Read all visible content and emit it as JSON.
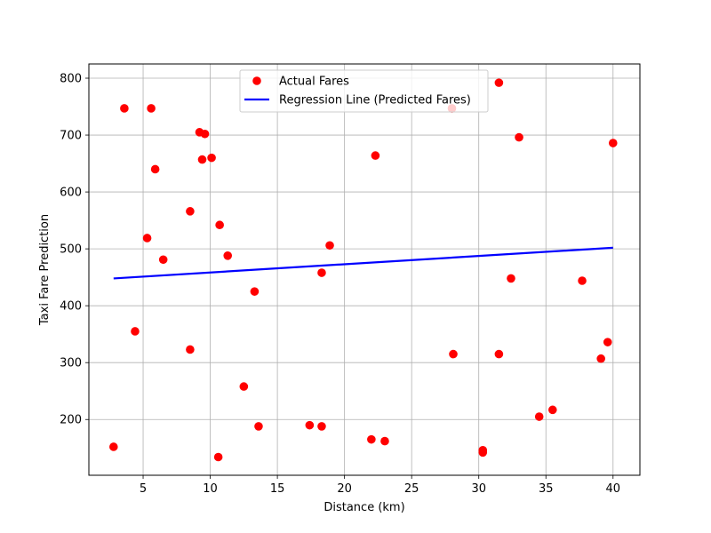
{
  "chart_data": {
    "type": "scatter",
    "xlabel": "Distance (km)",
    "ylabel": "Taxi Fare Prediction",
    "xlim": [
      0.96,
      42.0
    ],
    "ylim": [
      102,
      825
    ],
    "xticks": [
      5,
      10,
      15,
      20,
      25,
      30,
      35,
      40
    ],
    "yticks": [
      200,
      300,
      400,
      500,
      600,
      700,
      800
    ],
    "grid": true,
    "legend_position": "upper center",
    "series": [
      {
        "name": "Actual Fares",
        "kind": "scatter",
        "color": "#ff0000",
        "points": [
          [
            2.8,
            152
          ],
          [
            3.6,
            747
          ],
          [
            4.4,
            355
          ],
          [
            5.3,
            519
          ],
          [
            5.6,
            747
          ],
          [
            5.9,
            640
          ],
          [
            6.5,
            481
          ],
          [
            8.5,
            566
          ],
          [
            8.5,
            323
          ],
          [
            9.2,
            705
          ],
          [
            9.4,
            657
          ],
          [
            9.6,
            702
          ],
          [
            10.1,
            660
          ],
          [
            10.6,
            134
          ],
          [
            10.7,
            542
          ],
          [
            11.3,
            488
          ],
          [
            12.5,
            258
          ],
          [
            13.3,
            425
          ],
          [
            13.6,
            188
          ],
          [
            17.4,
            190
          ],
          [
            18.3,
            458
          ],
          [
            18.3,
            188
          ],
          [
            18.9,
            506
          ],
          [
            22.0,
            165
          ],
          [
            22.3,
            664
          ],
          [
            23.0,
            162
          ],
          [
            28.0,
            747
          ],
          [
            28.1,
            315
          ],
          [
            30.3,
            146
          ],
          [
            30.3,
            142
          ],
          [
            31.5,
            792
          ],
          [
            31.5,
            315
          ],
          [
            32.4,
            448
          ],
          [
            33.0,
            696
          ],
          [
            34.5,
            205
          ],
          [
            35.5,
            217
          ],
          [
            37.7,
            444
          ],
          [
            39.1,
            307
          ],
          [
            39.6,
            336
          ],
          [
            40.0,
            686
          ]
        ]
      },
      {
        "name": "Regression Line (Predicted Fares)",
        "kind": "line",
        "color": "#0000ff",
        "points": [
          [
            2.8,
            448
          ],
          [
            40.0,
            502
          ]
        ]
      }
    ]
  }
}
